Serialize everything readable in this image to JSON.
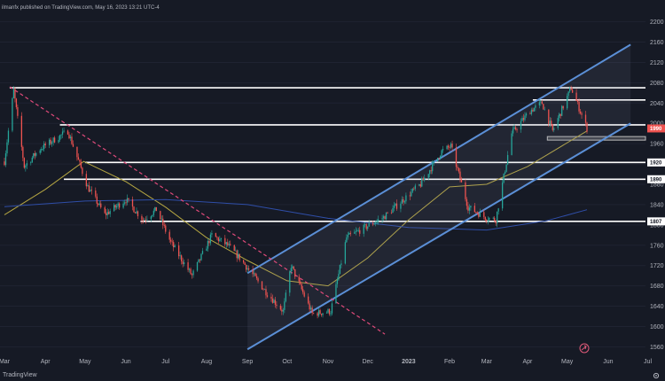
{
  "header": {
    "text": "ilmanfx published on TradingView.com, May 16, 2023 13:21 UTC-4"
  },
  "brand": {
    "label": "TradingView"
  },
  "colors": {
    "background": "#161a25",
    "bull": "#26a69a",
    "bear": "#ef5350",
    "channel": "#5b8fd6",
    "ma_short": "#b5a642",
    "ma_long": "#2f4ea8",
    "trendline": "#e04a7a",
    "level": "#ffffff",
    "axis_text": "#b2b5be"
  },
  "chart_data": {
    "type": "candlestick",
    "x_ticks": [
      "Mar",
      "Apr",
      "May",
      "Jun",
      "Jul",
      "Aug",
      "Sep",
      "Oct",
      "Nov",
      "Dec",
      "2023",
      "Feb",
      "Mar",
      "Apr",
      "May",
      "Jun",
      "Jul"
    ],
    "y_ticks": [
      1560,
      1600,
      1640,
      1680,
      1720,
      1760,
      1800,
      1840,
      1880,
      1920,
      1960,
      2000,
      2040,
      2080,
      2120,
      2160,
      2200
    ],
    "ylim": [
      1545,
      2215
    ],
    "horizontal_levels": [
      {
        "value": 2070,
        "label": ""
      },
      {
        "value": 2046,
        "label": ""
      },
      {
        "value": 1997,
        "label": ""
      },
      {
        "value": 1923,
        "label": "1920"
      },
      {
        "value": 1890,
        "label": "1890"
      },
      {
        "value": 1807,
        "label": "1807"
      }
    ],
    "support_zone": [
      1967,
      1974
    ],
    "last_price": {
      "value": 1990,
      "label": "1990"
    },
    "anchors": {
      "start": "2022-03-01",
      "end": "2023-05-16"
    },
    "path_points": [
      [
        "2022-03-01",
        1925
      ],
      [
        "2022-03-08",
        2065
      ],
      [
        "2022-03-16",
        1915
      ],
      [
        "2022-03-28",
        1950
      ],
      [
        "2022-04-12",
        1975
      ],
      [
        "2022-04-18",
        1985
      ],
      [
        "2022-05-03",
        1875
      ],
      [
        "2022-05-16",
        1820
      ],
      [
        "2022-06-01",
        1850
      ],
      [
        "2022-06-14",
        1810
      ],
      [
        "2022-06-24",
        1830
      ],
      [
        "2022-07-05",
        1765
      ],
      [
        "2022-07-21",
        1700
      ],
      [
        "2022-08-05",
        1780
      ],
      [
        "2022-08-17",
        1760
      ],
      [
        "2022-08-26",
        1735
      ],
      [
        "2022-09-16",
        1665
      ],
      [
        "2022-09-28",
        1630
      ],
      [
        "2022-10-04",
        1720
      ],
      [
        "2022-10-20",
        1625
      ],
      [
        "2022-11-03",
        1630
      ],
      [
        "2022-11-15",
        1775
      ],
      [
        "2022-12-13",
        1815
      ],
      [
        "2023-01-10",
        1880
      ],
      [
        "2023-01-26",
        1945
      ],
      [
        "2023-02-02",
        1955
      ],
      [
        "2023-02-15",
        1835
      ],
      [
        "2023-02-28",
        1815
      ],
      [
        "2023-03-08",
        1810
      ],
      [
        "2023-03-20",
        1980
      ],
      [
        "2023-04-03",
        2025
      ],
      [
        "2023-04-12",
        2040
      ],
      [
        "2023-04-20",
        1985
      ],
      [
        "2023-05-04",
        2070
      ],
      [
        "2023-05-16",
        1990
      ]
    ],
    "moving_averages": [
      {
        "period": "short",
        "points": [
          [
            "2022-03-01",
            1820
          ],
          [
            "2022-04-01",
            1870
          ],
          [
            "2022-04-30",
            1925
          ],
          [
            "2022-06-01",
            1885
          ],
          [
            "2022-07-01",
            1835
          ],
          [
            "2022-08-01",
            1775
          ],
          [
            "2022-09-01",
            1730
          ],
          [
            "2022-10-01",
            1690
          ],
          [
            "2022-11-01",
            1680
          ],
          [
            "2022-12-01",
            1735
          ],
          [
            "2023-01-01",
            1810
          ],
          [
            "2023-02-01",
            1875
          ],
          [
            "2023-03-01",
            1880
          ],
          [
            "2023-04-01",
            1915
          ],
          [
            "2023-05-16",
            1985
          ]
        ]
      },
      {
        "period": "long",
        "points": [
          [
            "2022-03-01",
            1836
          ],
          [
            "2022-05-01",
            1847
          ],
          [
            "2022-07-01",
            1850
          ],
          [
            "2022-09-01",
            1840
          ],
          [
            "2022-11-01",
            1813
          ],
          [
            "2023-01-01",
            1795
          ],
          [
            "2023-03-01",
            1790
          ],
          [
            "2023-04-15",
            1808
          ],
          [
            "2023-05-16",
            1830
          ]
        ]
      }
    ],
    "channel": {
      "upper": [
        [
          "2022-09-01",
          1705
        ],
        [
          "2023-06-18",
          2155
        ]
      ],
      "lower": [
        [
          "2022-09-01",
          1555
        ],
        [
          "2023-06-18",
          2000
        ]
      ]
    },
    "downtrend": [
      [
        "2022-03-05",
        2072
      ],
      [
        "2022-12-14",
        1585
      ]
    ]
  }
}
